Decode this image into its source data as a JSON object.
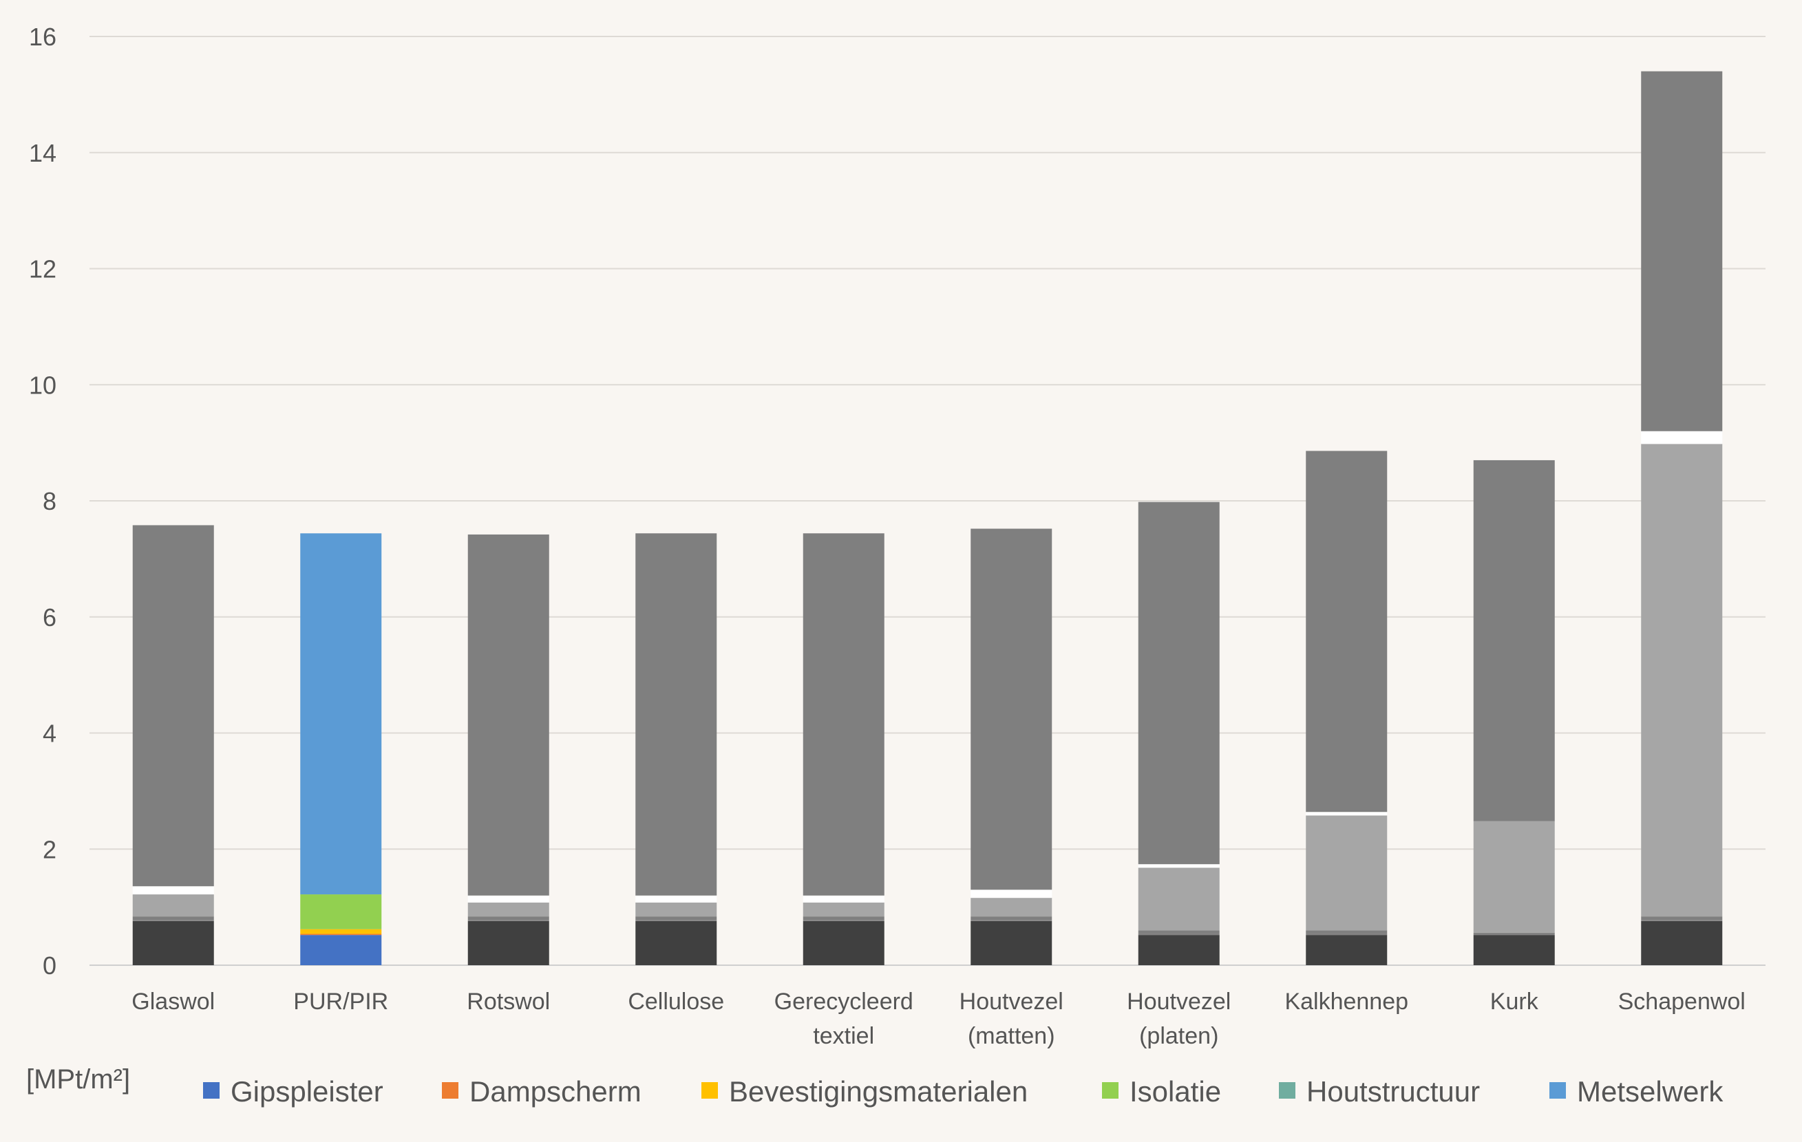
{
  "chart_data": {
    "type": "bar",
    "stacked": true,
    "title": "",
    "xlabel": "",
    "ylabel": "[MPt/m²]",
    "ylim": [
      0,
      16
    ],
    "yticks": [
      0,
      2,
      4,
      6,
      8,
      10,
      12,
      14,
      16
    ],
    "grid": true,
    "legend_position": "bottom",
    "categories": [
      [
        "Glaswol"
      ],
      [
        "PUR/PIR"
      ],
      [
        "Rotswol"
      ],
      [
        "Cellulose"
      ],
      [
        "Gerecycleerd",
        "textiel"
      ],
      [
        "Houtvezel",
        "(matten)"
      ],
      [
        "Houtvezel",
        "(platen)"
      ],
      [
        "Kalkhennep"
      ],
      [
        "Kurk"
      ],
      [
        "Schapenwol"
      ]
    ],
    "series": [
      {
        "name": "Gipspleister",
        "color": "#4472c4",
        "muted": "#404040",
        "values": [
          0.76,
          0.52,
          0.76,
          0.76,
          0.76,
          0.76,
          0.52,
          0.52,
          0.52,
          0.76
        ]
      },
      {
        "name": "Dampscherm",
        "color": "#ed7d31",
        "muted": "#7f7f7f",
        "values": [
          0.02,
          0.02,
          0.02,
          0.02,
          0.02,
          0.02,
          0.02,
          0.02,
          0.02,
          0.02
        ]
      },
      {
        "name": "Bevestigingsmaterialen",
        "color": "#ffc000",
        "muted": "#7f7f7f",
        "values": [
          0.06,
          0.08,
          0.06,
          0.06,
          0.06,
          0.06,
          0.06,
          0.06,
          0.02,
          0.06
        ]
      },
      {
        "name": "Isolatie",
        "color": "#92d050",
        "muted": "#a6a6a6",
        "values": [
          0.38,
          0.6,
          0.24,
          0.24,
          0.24,
          0.32,
          1.08,
          1.98,
          1.92,
          8.14
        ]
      },
      {
        "name": "Houtstructuur",
        "color": "#70ad9f",
        "muted": "#ffffff",
        "values": [
          0.14,
          0.0,
          0.12,
          0.12,
          0.12,
          0.14,
          0.06,
          0.06,
          0.0,
          0.22
        ]
      },
      {
        "name": "Metselwerk",
        "color": "#5b9bd5",
        "muted": "#7f7f7f",
        "values": [
          6.22,
          6.22,
          6.22,
          6.24,
          6.24,
          6.22,
          6.24,
          6.22,
          6.22,
          6.2
        ]
      }
    ]
  }
}
